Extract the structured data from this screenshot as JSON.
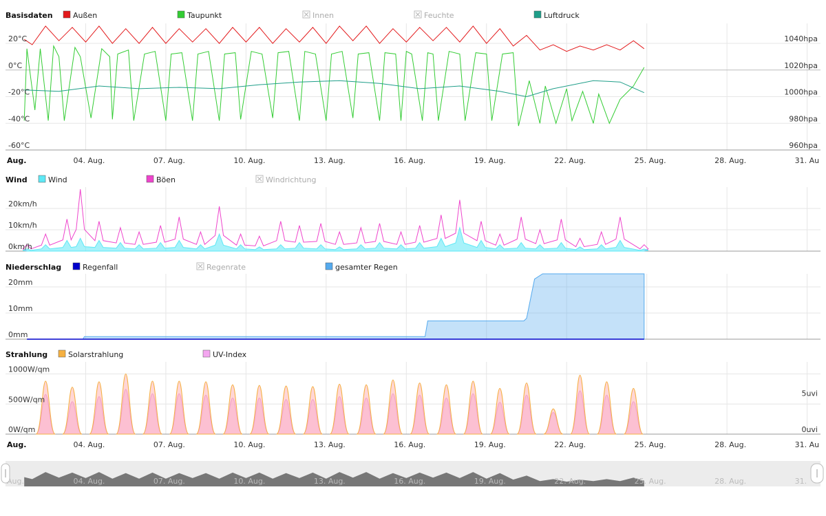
{
  "x_axis": {
    "first_label": "Aug.",
    "ticks": [
      "04. Aug.",
      "07. Aug.",
      "10. Aug.",
      "13. Aug.",
      "16. Aug.",
      "19. Aug.",
      "22. Aug.",
      "25. Aug.",
      "28. Aug.",
      "31. Au"
    ]
  },
  "panels": {
    "basisdaten": {
      "title": "Basisdaten",
      "legend": [
        {
          "label": "Außen",
          "color": "#e31a1c",
          "enabled": true
        },
        {
          "label": "Taupunkt",
          "color": "#33cc33",
          "enabled": true
        },
        {
          "label": "Innen",
          "color": "#cccccc",
          "enabled": false
        },
        {
          "label": "Feuchte",
          "color": "#cccccc",
          "enabled": false
        },
        {
          "label": "Luftdruck",
          "color": "#1f9e89",
          "enabled": true
        }
      ],
      "left_ticks": [
        "20°C",
        "0°C",
        "-20°C",
        "-40°C",
        "-60°C"
      ],
      "right_ticks": [
        "1040hpa",
        "1020hpa",
        "1000hpa",
        "980hpa",
        "960hpa"
      ]
    },
    "wind": {
      "title": "Wind",
      "legend": [
        {
          "label": "Wind",
          "color": "#5ee8f5",
          "enabled": true
        },
        {
          "label": "Böen",
          "color": "#ee44cc",
          "enabled": true
        },
        {
          "label": "Windrichtung",
          "color": "#cccccc",
          "enabled": false
        }
      ],
      "left_ticks": [
        "20km/h",
        "10km/h",
        "0km/h"
      ]
    },
    "niederschlag": {
      "title": "Niederschlag",
      "legend": [
        {
          "label": "Regenfall",
          "color": "#0000cc",
          "enabled": true
        },
        {
          "label": "Regenrate",
          "color": "#cccccc",
          "enabled": false
        },
        {
          "label": "gesamter Regen",
          "color": "#55aaee",
          "enabled": true
        }
      ],
      "left_ticks": [
        "20mm",
        "10mm",
        "0mm"
      ]
    },
    "strahlung": {
      "title": "Strahlung",
      "legend": [
        {
          "label": "Solarstrahlung",
          "color": "#f5b041",
          "enabled": true
        },
        {
          "label": "UV-Index",
          "color": "#f4a6f0",
          "enabled": true
        }
      ],
      "left_ticks": [
        "1000W/qm",
        "500W/qm",
        "0W/qm"
      ],
      "right_ticks": [
        "5uvi",
        "0uvi"
      ]
    }
  },
  "navigator": {
    "first_label": "Aug.",
    "ticks": [
      "04. Aug.",
      "07. Aug.",
      "10. Aug.",
      "13. Aug.",
      "16. Aug.",
      "19. Aug.",
      "22. Aug.",
      "25. Aug.",
      "28. Aug.",
      "31."
    ]
  },
  "chart_data": [
    {
      "type": "line",
      "title": "Basisdaten",
      "x_unit": "day of August",
      "xlim": [
        1,
        31.5
      ],
      "ylim": [
        -60,
        35
      ],
      "y2lim": [
        960,
        1055
      ],
      "series": [
        {
          "name": "Außen",
          "unit": "°C",
          "color": "#e31a1c",
          "x": [
            1.7,
            2,
            2.5,
            3,
            3.5,
            4,
            4.5,
            5,
            5.5,
            6,
            6.5,
            7,
            7.5,
            8,
            8.5,
            9,
            9.5,
            10,
            10.5,
            11,
            11.5,
            12,
            12.5,
            13,
            13.5,
            14,
            14.5,
            15,
            15.5,
            16,
            16.5,
            17,
            17.5,
            18,
            18.5,
            19,
            19.5,
            20,
            20.5,
            21,
            21.5,
            22,
            22.5,
            23,
            23.5,
            24,
            24.5,
            24.9
          ],
          "y": [
            23,
            19,
            33,
            22,
            32,
            21,
            33,
            20,
            31,
            20,
            32,
            20,
            31,
            21,
            31,
            20,
            32,
            21,
            32,
            20,
            31,
            21,
            32,
            20,
            33,
            22,
            33,
            20,
            31,
            21,
            32,
            22,
            32,
            21,
            33,
            20,
            31,
            18,
            26,
            15,
            19,
            14,
            18,
            15,
            19,
            15,
            22,
            16
          ]
        },
        {
          "name": "Taupunkt",
          "unit": "°C",
          "color": "#33cc33",
          "x": [
            1.7,
            1.8,
            2.1,
            2.3,
            2.6,
            2.8,
            3.0,
            3.2,
            3.6,
            3.8,
            4.2,
            4.6,
            4.9,
            5.0,
            5.2,
            5.6,
            5.8,
            6.2,
            6.6,
            7.0,
            7.2,
            7.6,
            8.0,
            8.2,
            8.6,
            9.0,
            9.2,
            9.6,
            9.8,
            10.2,
            10.6,
            11.0,
            11.2,
            11.6,
            12.0,
            12.2,
            12.6,
            13.0,
            13.2,
            13.6,
            14.0,
            14.2,
            14.6,
            15.0,
            15.2,
            15.6,
            15.8,
            16.0,
            16.2,
            16.6,
            16.8,
            17.0,
            17.2,
            17.6,
            18.0,
            18.2,
            18.6,
            19.0,
            19.2,
            19.6,
            20.0,
            20.2,
            20.6,
            21.0,
            21.2,
            21.6,
            22.0,
            22.2,
            22.6,
            23.0,
            23.2,
            23.6,
            24.0,
            24.5,
            24.9
          ],
          "y": [
            -38,
            16,
            -30,
            16,
            -38,
            18,
            10,
            -38,
            17,
            10,
            -36,
            16,
            10,
            -37,
            12,
            15,
            -38,
            12,
            14,
            -38,
            12,
            13,
            -38,
            12,
            14,
            -38,
            12,
            13,
            -37,
            14,
            12,
            -36,
            13,
            14,
            -38,
            14,
            12,
            -38,
            12,
            14,
            -36,
            12,
            13,
            -38,
            13,
            12,
            -38,
            14,
            12,
            -38,
            13,
            12,
            -38,
            14,
            12,
            -38,
            13,
            12,
            -38,
            12,
            13,
            -42,
            -8,
            -40,
            -12,
            -40,
            -14,
            -38,
            -16,
            -40,
            -18,
            -40,
            -22,
            -12,
            2
          ]
        },
        {
          "name": "Luftdruck",
          "unit": "hPa",
          "color": "#1f9e89",
          "axis": "right",
          "x": [
            1.7,
            3,
            4.5,
            6,
            7.5,
            9,
            10.5,
            12,
            13.5,
            15,
            16.5,
            18,
            19.5,
            20.5,
            21.5,
            23,
            24,
            24.9
          ],
          "y": [
            1005,
            1004,
            1008,
            1006,
            1007,
            1006,
            1009,
            1011,
            1012,
            1010,
            1006,
            1008,
            1004,
            1000,
            1006,
            1012,
            1011,
            1003
          ]
        }
      ]
    },
    {
      "type": "area",
      "title": "Wind",
      "xlim": [
        1,
        31.5
      ],
      "ylim": [
        0,
        30
      ],
      "series": [
        {
          "name": "Wind",
          "unit": "km/h",
          "color": "#5ee8f5",
          "x": [
            1.8,
            2.5,
            3.3,
            3.8,
            4.5,
            5.3,
            6,
            6.8,
            7.5,
            8.3,
            9,
            9.8,
            10.5,
            11.3,
            12,
            12.8,
            13.5,
            14.3,
            15,
            15.8,
            16.5,
            17.3,
            18,
            18.8,
            19.5,
            20.3,
            21,
            21.8,
            22.5,
            23.3,
            24,
            24.9
          ],
          "y": [
            1,
            3,
            5,
            6,
            5,
            4,
            3,
            4,
            5,
            3,
            8,
            3,
            2,
            3,
            4,
            3,
            2,
            3,
            4,
            3,
            4,
            6,
            11,
            5,
            3,
            4,
            3,
            4,
            2,
            3,
            5,
            1
          ]
        },
        {
          "name": "Böen",
          "unit": "km/h",
          "color": "#ee44cc",
          "x": [
            1.8,
            2.5,
            3.3,
            3.8,
            4.5,
            5.3,
            6,
            6.8,
            7.5,
            8.3,
            9,
            9.8,
            10.5,
            11.3,
            12,
            12.8,
            13.5,
            14.3,
            15,
            15.8,
            16.5,
            17.3,
            18,
            18.8,
            19.5,
            20.3,
            21,
            21.8,
            22.5,
            23.3,
            24,
            24.9
          ],
          "y": [
            3,
            8,
            15,
            29,
            14,
            11,
            9,
            12,
            16,
            9,
            21,
            8,
            7,
            14,
            12,
            13,
            9,
            11,
            13,
            9,
            12,
            17,
            24,
            14,
            8,
            16,
            10,
            15,
            6,
            9,
            16,
            3
          ]
        }
      ]
    },
    {
      "type": "area",
      "title": "Niederschlag",
      "xlim": [
        1,
        31.5
      ],
      "ylim": [
        0,
        25
      ],
      "series": [
        {
          "name": "gesamter Regen",
          "unit": "mm",
          "color": "#55aaee",
          "x": [
            1.8,
            3.9,
            3.95,
            16.7,
            16.8,
            20.4,
            20.5,
            20.8,
            21.1,
            24.9
          ],
          "y": [
            0,
            0,
            1,
            1,
            7,
            7,
            8,
            23,
            25,
            25
          ]
        },
        {
          "name": "Regenfall",
          "unit": "mm",
          "color": "#0000cc",
          "x": [
            1.8,
            24.9
          ],
          "y": [
            0,
            0
          ]
        }
      ]
    },
    {
      "type": "area",
      "title": "Strahlung",
      "xlim": [
        1,
        31.5
      ],
      "ylim": [
        0,
        1200
      ],
      "y2lim": [
        0,
        10
      ],
      "series": [
        {
          "name": "Solarstrahlung",
          "unit": "W/qm",
          "color": "#f5b041",
          "peak_x": [
            2.5,
            3.5,
            4.5,
            5.5,
            6.5,
            7.5,
            8.5,
            9.5,
            10.5,
            11.5,
            12.5,
            13.5,
            14.5,
            15.5,
            16.5,
            17.5,
            18.5,
            19.5,
            20.5,
            21.5,
            22.5,
            23.5,
            24.5
          ],
          "peak_y": [
            880,
            780,
            870,
            1000,
            880,
            880,
            870,
            820,
            810,
            800,
            790,
            830,
            820,
            900,
            850,
            820,
            880,
            760,
            850,
            420,
            980,
            870,
            760
          ]
        },
        {
          "name": "UV-Index",
          "unit": "uvi",
          "color": "#f4a6f0",
          "axis": "right",
          "peak_x": [
            2.5,
            3.5,
            4.5,
            5.5,
            6.5,
            7.5,
            8.5,
            9.5,
            10.5,
            11.5,
            12.5,
            13.5,
            14.5,
            15.5,
            16.5,
            17.5,
            18.5,
            19.5,
            20.5,
            21.5,
            22.5,
            23.5,
            24.5
          ],
          "peak_y": [
            5.5,
            4.5,
            5.2,
            6.2,
            5.6,
            5.6,
            5.4,
            5,
            5,
            4.8,
            4.8,
            5.2,
            5,
            5.6,
            5.4,
            5,
            5.6,
            4.4,
            5.4,
            3,
            6,
            5.4,
            4.5
          ]
        }
      ]
    }
  ]
}
